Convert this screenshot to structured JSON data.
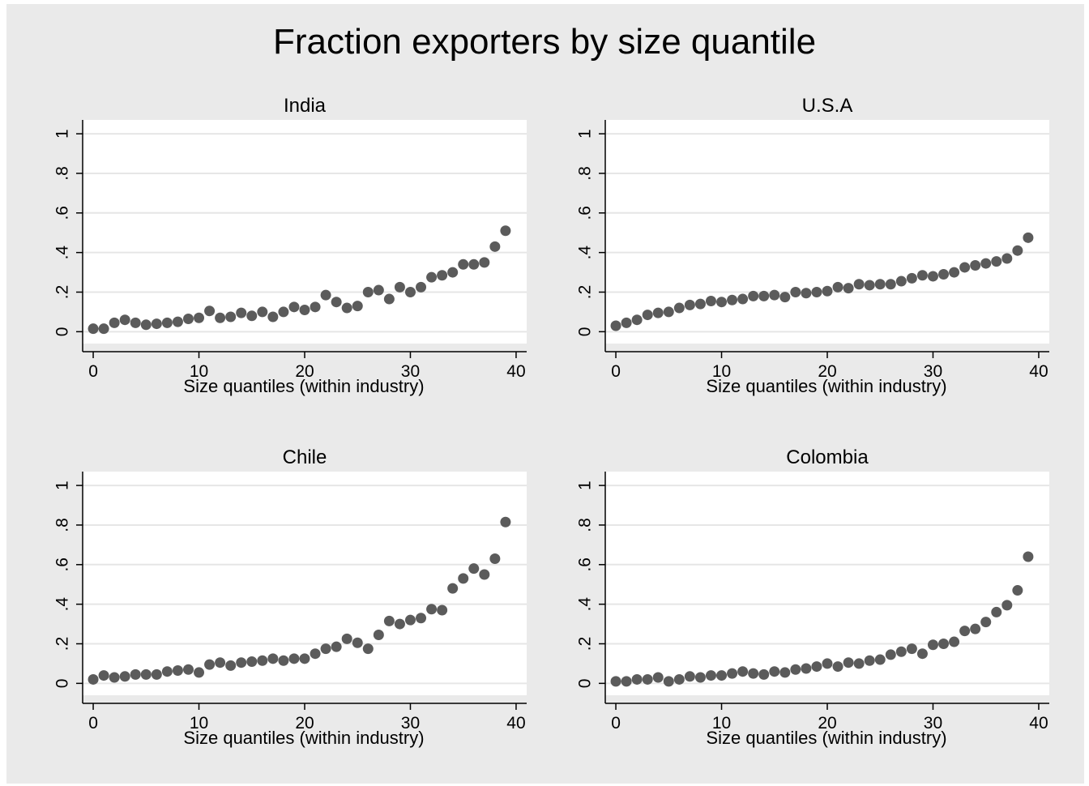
{
  "figure": {
    "title": "Fraction exporters by size quantile",
    "colors": {
      "background": "#eaeaea",
      "plot_background": "#ffffff",
      "grid": "#e6e6e6",
      "marker": "#5b5b5b",
      "axis": "#000000"
    }
  },
  "chart_data": [
    {
      "type": "scatter",
      "title": "India",
      "xlabel": "Size quantiles (within industry)",
      "ylabel": "",
      "xlim": [
        -1,
        41
      ],
      "ylim": [
        -0.06,
        1.07
      ],
      "xticks": [
        0,
        10,
        20,
        30,
        40
      ],
      "xtick_labels": [
        "0",
        "10",
        "20",
        "30",
        "40"
      ],
      "yticks": [
        0,
        0.2,
        0.4,
        0.6,
        0.8,
        1
      ],
      "ytick_labels": [
        "0",
        ".2",
        ".4",
        ".6",
        ".8",
        "1"
      ],
      "grid": true,
      "x": [
        0,
        1,
        2,
        3,
        4,
        5,
        6,
        7,
        8,
        9,
        10,
        11,
        12,
        13,
        14,
        15,
        16,
        17,
        18,
        19,
        20,
        21,
        22,
        23,
        24,
        25,
        26,
        27,
        28,
        29,
        30,
        31,
        32,
        33,
        34,
        35,
        36,
        37,
        38,
        39
      ],
      "y": [
        0.015,
        0.015,
        0.045,
        0.06,
        0.045,
        0.035,
        0.04,
        0.045,
        0.05,
        0.065,
        0.07,
        0.105,
        0.07,
        0.075,
        0.095,
        0.08,
        0.1,
        0.075,
        0.1,
        0.125,
        0.11,
        0.125,
        0.185,
        0.15,
        0.12,
        0.13,
        0.2,
        0.21,
        0.165,
        0.225,
        0.2,
        0.225,
        0.275,
        0.285,
        0.3,
        0.34,
        0.34,
        0.35,
        0.43,
        0.51
      ]
    },
    {
      "type": "scatter",
      "title": "U.S.A",
      "xlabel": "Size quantiles (within industry)",
      "ylabel": "",
      "xlim": [
        -1,
        41
      ],
      "ylim": [
        -0.06,
        1.07
      ],
      "xticks": [
        0,
        10,
        20,
        30,
        40
      ],
      "xtick_labels": [
        "0",
        "10",
        "20",
        "30",
        "40"
      ],
      "yticks": [
        0,
        0.2,
        0.4,
        0.6,
        0.8,
        1
      ],
      "ytick_labels": [
        "0",
        ".2",
        ".4",
        ".6",
        ".8",
        "1"
      ],
      "grid": true,
      "x": [
        0,
        1,
        2,
        3,
        4,
        5,
        6,
        7,
        8,
        9,
        10,
        11,
        12,
        13,
        14,
        15,
        16,
        17,
        18,
        19,
        20,
        21,
        22,
        23,
        24,
        25,
        26,
        27,
        28,
        29,
        30,
        31,
        32,
        33,
        34,
        35,
        36,
        37,
        38,
        39
      ],
      "y": [
        0.03,
        0.045,
        0.06,
        0.085,
        0.095,
        0.1,
        0.12,
        0.135,
        0.14,
        0.155,
        0.15,
        0.16,
        0.165,
        0.18,
        0.18,
        0.185,
        0.175,
        0.2,
        0.195,
        0.2,
        0.205,
        0.225,
        0.22,
        0.24,
        0.235,
        0.24,
        0.24,
        0.255,
        0.27,
        0.285,
        0.28,
        0.29,
        0.3,
        0.325,
        0.335,
        0.345,
        0.355,
        0.37,
        0.41,
        0.475
      ]
    },
    {
      "type": "scatter",
      "title": "Chile",
      "xlabel": "Size quantiles (within industry)",
      "ylabel": "",
      "xlim": [
        -1,
        41
      ],
      "ylim": [
        -0.06,
        1.07
      ],
      "xticks": [
        0,
        10,
        20,
        30,
        40
      ],
      "xtick_labels": [
        "0",
        "10",
        "20",
        "30",
        "40"
      ],
      "yticks": [
        0,
        0.2,
        0.4,
        0.6,
        0.8,
        1
      ],
      "ytick_labels": [
        "0",
        ".2",
        ".4",
        ".6",
        ".8",
        "1"
      ],
      "grid": true,
      "x": [
        0,
        1,
        2,
        3,
        4,
        5,
        6,
        7,
        8,
        9,
        10,
        11,
        12,
        13,
        14,
        15,
        16,
        17,
        18,
        19,
        20,
        21,
        22,
        23,
        24,
        25,
        26,
        27,
        28,
        29,
        30,
        31,
        32,
        33,
        34,
        35,
        36,
        37,
        38,
        39
      ],
      "y": [
        0.02,
        0.04,
        0.03,
        0.035,
        0.045,
        0.045,
        0.045,
        0.06,
        0.065,
        0.07,
        0.055,
        0.095,
        0.105,
        0.09,
        0.105,
        0.11,
        0.115,
        0.125,
        0.115,
        0.125,
        0.125,
        0.15,
        0.175,
        0.185,
        0.225,
        0.205,
        0.175,
        0.245,
        0.315,
        0.3,
        0.32,
        0.33,
        0.375,
        0.37,
        0.48,
        0.53,
        0.58,
        0.55,
        0.63,
        0.815
      ]
    },
    {
      "type": "scatter",
      "title": "Colombia",
      "xlabel": "Size quantiles (within industry)",
      "ylabel": "",
      "xlim": [
        -1,
        41
      ],
      "ylim": [
        -0.06,
        1.07
      ],
      "xticks": [
        0,
        10,
        20,
        30,
        40
      ],
      "xtick_labels": [
        "0",
        "10",
        "20",
        "30",
        "40"
      ],
      "yticks": [
        0,
        0.2,
        0.4,
        0.6,
        0.8,
        1
      ],
      "ytick_labels": [
        "0",
        ".2",
        ".4",
        ".6",
        ".8",
        "1"
      ],
      "grid": true,
      "x": [
        0,
        1,
        2,
        3,
        4,
        5,
        6,
        7,
        8,
        9,
        10,
        11,
        12,
        13,
        14,
        15,
        16,
        17,
        18,
        19,
        20,
        21,
        22,
        23,
        24,
        25,
        26,
        27,
        28,
        29,
        30,
        31,
        32,
        33,
        34,
        35,
        36,
        37,
        38,
        39
      ],
      "y": [
        0.01,
        0.01,
        0.02,
        0.02,
        0.03,
        0.01,
        0.02,
        0.035,
        0.03,
        0.04,
        0.04,
        0.05,
        0.06,
        0.05,
        0.045,
        0.06,
        0.055,
        0.07,
        0.075,
        0.085,
        0.1,
        0.085,
        0.105,
        0.1,
        0.115,
        0.12,
        0.145,
        0.16,
        0.175,
        0.15,
        0.195,
        0.2,
        0.21,
        0.265,
        0.275,
        0.31,
        0.36,
        0.395,
        0.47,
        0.64
      ]
    }
  ]
}
